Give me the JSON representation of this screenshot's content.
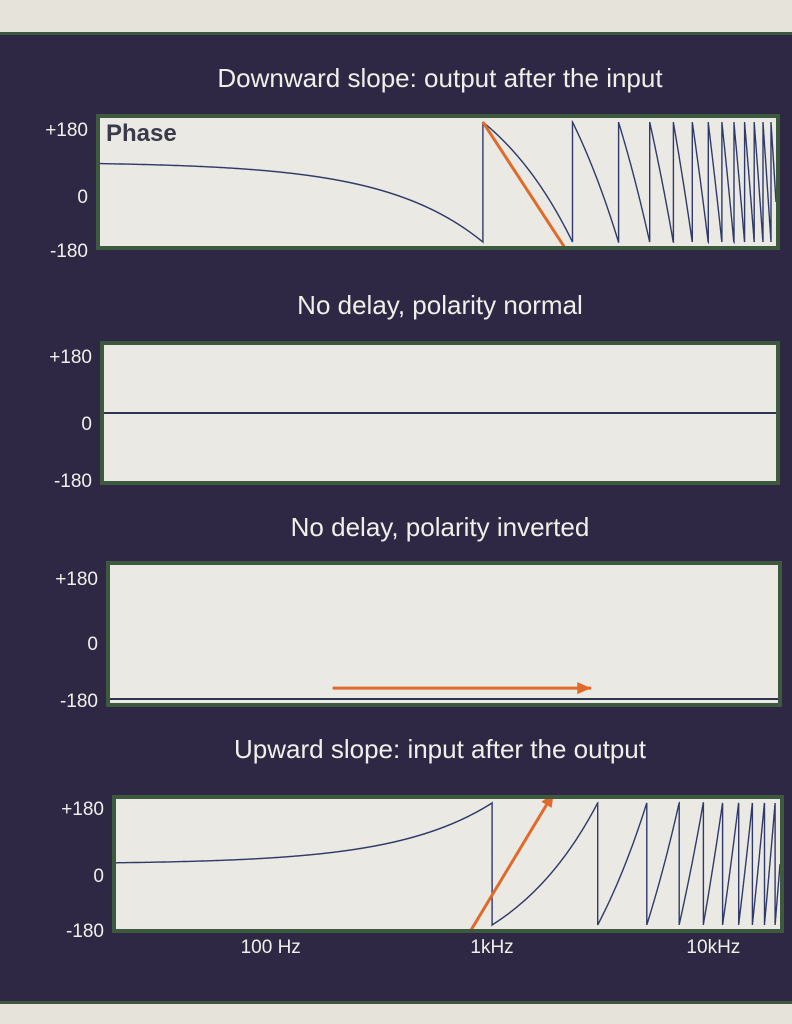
{
  "chart_data": [
    {
      "type": "line",
      "title": "Downward slope: output after the input",
      "series_label": "Phase",
      "ylim": [
        -180,
        180
      ],
      "yticks": [
        "+180",
        "0",
        "-180"
      ],
      "x_scale": "log",
      "xlim": [
        20,
        20000
      ],
      "series": [
        {
          "name": "phase",
          "shape": "wrapped-phase",
          "direction": "down",
          "start_phase": 60
        }
      ],
      "arrow": {
        "color": "#e06a2a",
        "from": [
          1000,
          180
        ],
        "to": [
          2600,
          -250
        ]
      }
    },
    {
      "type": "line",
      "title": "No delay, polarity normal",
      "ylim": [
        -180,
        180
      ],
      "yticks": [
        "+180",
        "0",
        "-180"
      ],
      "x_scale": "log",
      "xlim": [
        20,
        20000
      ],
      "series": [
        {
          "name": "phase",
          "shape": "constant",
          "value": 0
        }
      ]
    },
    {
      "type": "line",
      "title": "No delay, polarity inverted",
      "ylim": [
        -180,
        180
      ],
      "yticks": [
        "+180",
        "0",
        "-180"
      ],
      "x_scale": "log",
      "xlim": [
        20,
        20000
      ],
      "series": [
        {
          "name": "phase",
          "shape": "constant",
          "value": -180
        }
      ],
      "arrow": {
        "color": "#e06a2a",
        "from": [
          200,
          -150
        ],
        "to": [
          2900,
          -150
        ]
      }
    },
    {
      "type": "line",
      "title": "Upward slope: input after the output",
      "ylim": [
        -180,
        180
      ],
      "yticks": [
        "+180",
        "0",
        "-180"
      ],
      "x_scale": "log",
      "xlim": [
        20,
        20000
      ],
      "xtick_labels": [
        {
          "label": "100 Hz",
          "x": 100
        },
        {
          "label": "1kHz",
          "x": 1000
        },
        {
          "label": "10kHz",
          "x": 10000
        }
      ],
      "series": [
        {
          "name": "phase",
          "shape": "wrapped-phase",
          "direction": "up",
          "start_phase": 0
        }
      ],
      "arrow": {
        "color": "#e06a2a",
        "from": [
          700,
          -260
        ],
        "to": [
          1900,
          210
        ]
      }
    }
  ]
}
